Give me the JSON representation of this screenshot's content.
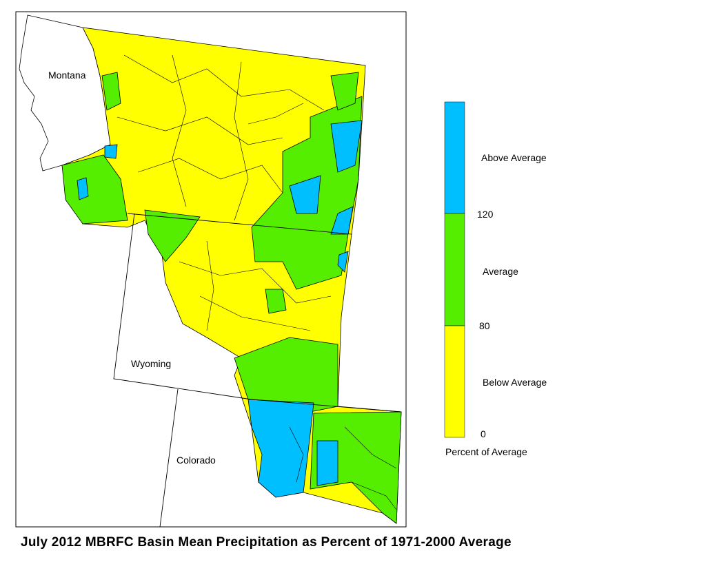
{
  "map": {
    "state_labels": [
      "Montana",
      "Wyoming",
      "Colorado"
    ]
  },
  "legend": {
    "labels": [
      "Above Average",
      "Average",
      "Below Average"
    ],
    "ticks": [
      120,
      80,
      0
    ],
    "caption": "Percent of Average"
  },
  "title": "July 2012 MBRFC Basin Mean Precipitation as Percent of 1971-2000 Average"
}
